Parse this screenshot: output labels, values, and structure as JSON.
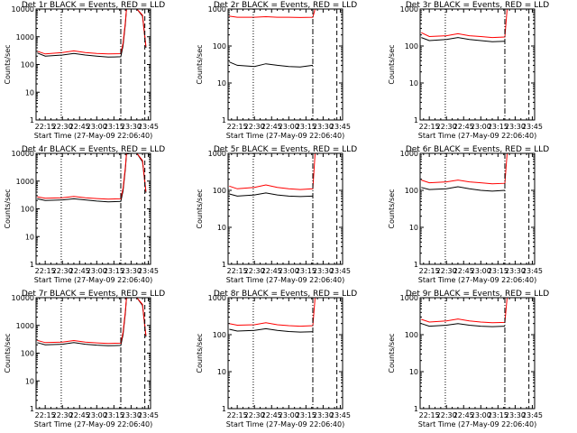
{
  "x_axis_title": "Start Time (27-May-09 22:06:40)",
  "y_axis_title": "Counts/sec",
  "x_tick_labels": [
    "22:15",
    "22:30",
    "22:45",
    "23:00",
    "23:15",
    "23:30",
    "23:45"
  ],
  "y_tick_labels": [
    "1",
    "10",
    "100",
    "1000",
    "10000"
  ],
  "colors": {
    "events": "#000000",
    "lld": "#ff0000",
    "frame": "#000000",
    "background": "#ffffff"
  },
  "chart_data": [
    {
      "type": "line",
      "title": "Det 1r BLACK = Events, RED = LLD",
      "ylim": [
        1,
        10000
      ],
      "y_scale": "log",
      "series": [
        {
          "name": "Events",
          "x": [
            "22:08",
            "22:15",
            "22:30",
            "22:40",
            "22:50",
            "23:00",
            "23:10",
            "23:21",
            "23:23",
            "23:25",
            "23:26",
            "23:30",
            "23:35",
            "23:40",
            "23:43"
          ],
          "values": [
            260,
            200,
            220,
            250,
            220,
            200,
            185,
            190,
            480,
            3000,
            10000,
            11000,
            10500,
            5500,
            400
          ]
        },
        {
          "name": "LLD",
          "x": [
            "22:08",
            "22:15",
            "22:30",
            "22:40",
            "22:50",
            "23:00",
            "23:10",
            "23:21",
            "23:23",
            "23:25",
            "23:26",
            "23:30",
            "23:35",
            "23:40",
            "23:43"
          ],
          "values": [
            300,
            240,
            270,
            310,
            270,
            250,
            240,
            245,
            600,
            3500,
            10500,
            11500,
            11000,
            6000,
            450
          ]
        }
      ],
      "markers": {
        "dotted_x": "22:29",
        "dashdot_x": "23:21",
        "dashed_x": "23:42"
      }
    },
    {
      "type": "line",
      "title": "Det 2r BLACK = Events, RED = LLD",
      "ylim": [
        1,
        1000
      ],
      "y_scale": "log",
      "series": [
        {
          "name": "Events",
          "x": [
            "22:08",
            "22:15",
            "22:30",
            "22:40",
            "22:50",
            "23:00",
            "23:10",
            "23:21"
          ],
          "values": [
            37,
            30,
            28,
            33,
            30,
            28,
            27,
            30
          ]
        },
        {
          "name": "LLD",
          "x": [
            "22:08",
            "22:15",
            "22:30",
            "22:40",
            "22:50",
            "23:00",
            "23:10",
            "23:21",
            "23:23",
            "23:40",
            "23:43"
          ],
          "values": [
            640,
            600,
            600,
            620,
            600,
            600,
            590,
            600,
            1000,
            1000,
            1000
          ]
        }
      ],
      "markers": {
        "dotted_x": "22:29",
        "dashdot_x": "23:21",
        "dashed_x": "23:42"
      }
    },
    {
      "type": "line",
      "title": "Det 3r BLACK = Events, RED = LLD",
      "ylim": [
        1,
        1000
      ],
      "y_scale": "log",
      "series": [
        {
          "name": "Events",
          "x": [
            "22:08",
            "22:15",
            "22:30",
            "22:40",
            "22:50",
            "23:00",
            "23:10",
            "23:21"
          ],
          "values": [
            170,
            140,
            150,
            170,
            150,
            140,
            130,
            135
          ]
        },
        {
          "name": "LLD",
          "x": [
            "22:08",
            "22:15",
            "22:30",
            "22:40",
            "22:50",
            "23:00",
            "23:10",
            "23:21",
            "23:23",
            "23:40",
            "23:43"
          ],
          "values": [
            230,
            180,
            190,
            215,
            190,
            180,
            170,
            175,
            1000,
            1000,
            1000
          ]
        }
      ],
      "markers": {
        "dotted_x": "22:29",
        "dashdot_x": "23:21",
        "dashed_x": "23:42"
      }
    },
    {
      "type": "line",
      "title": "Det 4r BLACK = Events, RED = LLD",
      "ylim": [
        1,
        10000
      ],
      "y_scale": "log",
      "series": [
        {
          "name": "Events",
          "x": [
            "22:08",
            "22:15",
            "22:30",
            "22:40",
            "22:50",
            "23:00",
            "23:10",
            "23:21",
            "23:23",
            "23:25",
            "23:26",
            "23:30",
            "23:35",
            "23:40",
            "23:43"
          ],
          "values": [
            230,
            200,
            210,
            230,
            210,
            190,
            180,
            185,
            450,
            2800,
            9500,
            10500,
            10000,
            5000,
            380
          ]
        },
        {
          "name": "LLD",
          "x": [
            "22:08",
            "22:15",
            "22:30",
            "22:40",
            "22:50",
            "23:00",
            "23:10",
            "23:21",
            "23:23",
            "23:25",
            "23:26",
            "23:30",
            "23:35",
            "23:40",
            "23:43"
          ],
          "values": [
            270,
            240,
            250,
            280,
            250,
            235,
            225,
            230,
            560,
            3300,
            10000,
            11000,
            10500,
            5500,
            420
          ]
        }
      ],
      "markers": {
        "dotted_x": "22:29",
        "dashdot_x": "23:21",
        "dashed_x": "23:42"
      }
    },
    {
      "type": "line",
      "title": "Det 5r BLACK = Events, RED = LLD",
      "ylim": [
        1,
        1000
      ],
      "y_scale": "log",
      "series": [
        {
          "name": "Events",
          "x": [
            "22:08",
            "22:15",
            "22:30",
            "22:40",
            "22:50",
            "23:00",
            "23:10",
            "23:21"
          ],
          "values": [
            80,
            70,
            75,
            85,
            75,
            70,
            68,
            70
          ]
        },
        {
          "name": "LLD",
          "x": [
            "22:08",
            "22:15",
            "22:30",
            "22:40",
            "22:50",
            "23:00",
            "23:10",
            "23:21",
            "23:23",
            "23:40",
            "23:43"
          ],
          "values": [
            130,
            110,
            120,
            140,
            120,
            110,
            105,
            110,
            1000,
            1000,
            1000
          ]
        }
      ],
      "markers": {
        "dotted_x": "22:29",
        "dashdot_x": "23:21",
        "dashed_x": "23:42"
      }
    },
    {
      "type": "line",
      "title": "Det 6r BLACK = Events, RED = LLD",
      "ylim": [
        1,
        1000
      ],
      "y_scale": "log",
      "series": [
        {
          "name": "Events",
          "x": [
            "22:08",
            "22:15",
            "22:30",
            "22:40",
            "22:50",
            "23:00",
            "23:10",
            "23:21"
          ],
          "values": [
            120,
            105,
            110,
            125,
            110,
            100,
            95,
            100
          ]
        },
        {
          "name": "LLD",
          "x": [
            "22:08",
            "22:15",
            "22:30",
            "22:40",
            "22:50",
            "23:00",
            "23:10",
            "23:21",
            "23:23",
            "23:40",
            "23:43"
          ],
          "values": [
            190,
            160,
            170,
            190,
            170,
            160,
            150,
            155,
            1000,
            1000,
            1000
          ]
        }
      ],
      "markers": {
        "dotted_x": "22:29",
        "dashdot_x": "23:21",
        "dashed_x": "23:42"
      }
    },
    {
      "type": "line",
      "title": "Det 7r BLACK = Events, RED = LLD",
      "ylim": [
        1,
        10000
      ],
      "y_scale": "log",
      "series": [
        {
          "name": "Events",
          "x": [
            "22:08",
            "22:15",
            "22:30",
            "22:40",
            "22:50",
            "23:00",
            "23:10",
            "23:21",
            "23:23",
            "23:25",
            "23:26",
            "23:30",
            "23:35",
            "23:40",
            "23:43"
          ],
          "values": [
            240,
            200,
            210,
            240,
            210,
            195,
            185,
            190,
            470,
            2900,
            9800,
            10800,
            10300,
            5200,
            390
          ]
        },
        {
          "name": "LLD",
          "x": [
            "22:08",
            "22:15",
            "22:30",
            "22:40",
            "22:50",
            "23:00",
            "23:10",
            "23:21",
            "23:23",
            "23:25",
            "23:26",
            "23:30",
            "23:35",
            "23:40",
            "23:43"
          ],
          "values": [
            290,
            240,
            250,
            285,
            250,
            235,
            225,
            230,
            580,
            3400,
            10300,
            11300,
            10800,
            5700,
            430
          ]
        }
      ],
      "markers": {
        "dotted_x": "22:29",
        "dashdot_x": "23:21",
        "dashed_x": "23:42"
      }
    },
    {
      "type": "line",
      "title": "Det 8r BLACK = Events, RED = LLD",
      "ylim": [
        1,
        1000
      ],
      "y_scale": "log",
      "series": [
        {
          "name": "Events",
          "x": [
            "22:08",
            "22:15",
            "22:30",
            "22:40",
            "22:50",
            "23:00",
            "23:10",
            "23:21"
          ],
          "values": [
            140,
            125,
            130,
            145,
            130,
            122,
            118,
            120
          ]
        },
        {
          "name": "LLD",
          "x": [
            "22:08",
            "22:15",
            "22:30",
            "22:40",
            "22:50",
            "23:00",
            "23:10",
            "23:21",
            "23:23",
            "23:40",
            "23:43"
          ],
          "values": [
            200,
            180,
            185,
            210,
            185,
            175,
            170,
            175,
            1000,
            1000,
            1000
          ]
        }
      ],
      "markers": {
        "dotted_x": "22:29",
        "dashdot_x": "23:21",
        "dashed_x": "23:42"
      }
    },
    {
      "type": "line",
      "title": "Det 9r BLACK = Events, RED = LLD",
      "ylim": [
        1,
        1000
      ],
      "y_scale": "log",
      "series": [
        {
          "name": "Events",
          "x": [
            "22:08",
            "22:15",
            "22:30",
            "22:40",
            "22:50",
            "23:00",
            "23:10",
            "23:21"
          ],
          "values": [
            200,
            170,
            180,
            200,
            180,
            170,
            165,
            170
          ]
        },
        {
          "name": "LLD",
          "x": [
            "22:08",
            "22:15",
            "22:30",
            "22:40",
            "22:50",
            "23:00",
            "23:10",
            "23:21",
            "23:23",
            "23:40",
            "23:43"
          ],
          "values": [
            260,
            220,
            235,
            265,
            235,
            220,
            210,
            215,
            1000,
            1000,
            1000
          ]
        }
      ],
      "markers": {
        "dotted_x": "22:29",
        "dashdot_x": "23:21",
        "dashed_x": "23:42"
      }
    }
  ]
}
